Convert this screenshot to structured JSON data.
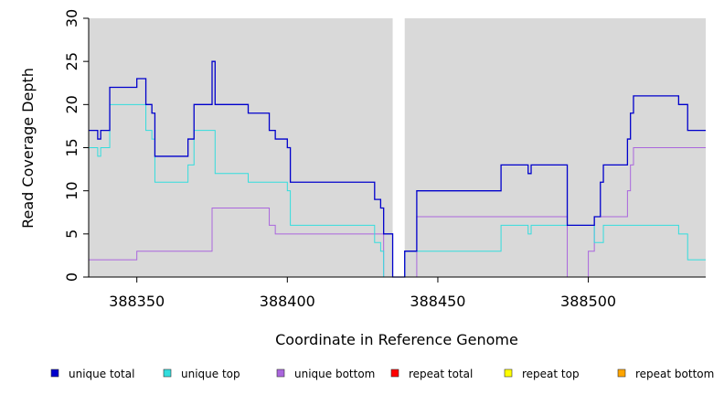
{
  "chart_data": {
    "type": "line",
    "title": "",
    "xlabel": "Coordinate in Reference Genome",
    "ylabel": "Read Coverage Depth",
    "xlim": [
      388334,
      388539
    ],
    "ylim": [
      0,
      30
    ],
    "x_ticks": [
      388350,
      388400,
      388450,
      388500
    ],
    "y_ticks": [
      0,
      5,
      10,
      15,
      20,
      25,
      30
    ],
    "shaded_regions": [
      {
        "x0": 388334,
        "x1": 388435
      },
      {
        "x0": 388439,
        "x1": 388539
      }
    ],
    "legend_position": "bottom",
    "series": [
      {
        "name": "unique total",
        "color": "#0000cc",
        "points": [
          [
            388334,
            17
          ],
          [
            388337,
            17
          ],
          [
            388337,
            16
          ],
          [
            388338,
            16
          ],
          [
            388338,
            17
          ],
          [
            388341,
            17
          ],
          [
            388341,
            22
          ],
          [
            388350,
            22
          ],
          [
            388350,
            23
          ],
          [
            388353,
            23
          ],
          [
            388353,
            20
          ],
          [
            388355,
            20
          ],
          [
            388355,
            19
          ],
          [
            388356,
            19
          ],
          [
            388356,
            14
          ],
          [
            388367,
            14
          ],
          [
            388367,
            16
          ],
          [
            388369,
            16
          ],
          [
            388369,
            20
          ],
          [
            388375,
            20
          ],
          [
            388375,
            25
          ],
          [
            388376,
            25
          ],
          [
            388376,
            20
          ],
          [
            388387,
            20
          ],
          [
            388387,
            19
          ],
          [
            388394,
            19
          ],
          [
            388394,
            17
          ],
          [
            388396,
            17
          ],
          [
            388396,
            16
          ],
          [
            388400,
            16
          ],
          [
            388400,
            15
          ],
          [
            388401,
            15
          ],
          [
            388401,
            11
          ],
          [
            388429,
            11
          ],
          [
            388429,
            9
          ],
          [
            388431,
            9
          ],
          [
            388431,
            8
          ],
          [
            388432,
            8
          ],
          [
            388432,
            5
          ],
          [
            388435,
            5
          ],
          [
            388435,
            0
          ],
          [
            388439,
            0
          ],
          [
            388439,
            3
          ],
          [
            388443,
            3
          ],
          [
            388443,
            10
          ],
          [
            388471,
            10
          ],
          [
            388471,
            13
          ],
          [
            388480,
            13
          ],
          [
            388480,
            12
          ],
          [
            388481,
            12
          ],
          [
            388481,
            13
          ],
          [
            388493,
            13
          ],
          [
            388493,
            6
          ],
          [
            388502,
            6
          ],
          [
            388502,
            7
          ],
          [
            388504,
            7
          ],
          [
            388504,
            11
          ],
          [
            388505,
            11
          ],
          [
            388505,
            13
          ],
          [
            388513,
            13
          ],
          [
            388513,
            16
          ],
          [
            388514,
            16
          ],
          [
            388514,
            19
          ],
          [
            388515,
            19
          ],
          [
            388515,
            21
          ],
          [
            388530,
            21
          ],
          [
            388530,
            20
          ],
          [
            388533,
            20
          ],
          [
            388533,
            17
          ],
          [
            388539,
            17
          ]
        ]
      },
      {
        "name": "unique top",
        "color": "#33dddd",
        "points": [
          [
            388334,
            15
          ],
          [
            388337,
            15
          ],
          [
            388337,
            14
          ],
          [
            388338,
            14
          ],
          [
            388338,
            15
          ],
          [
            388341,
            15
          ],
          [
            388341,
            20
          ],
          [
            388353,
            20
          ],
          [
            388353,
            17
          ],
          [
            388355,
            17
          ],
          [
            388355,
            16
          ],
          [
            388356,
            16
          ],
          [
            388356,
            11
          ],
          [
            388367,
            11
          ],
          [
            388367,
            13
          ],
          [
            388369,
            13
          ],
          [
            388369,
            17
          ],
          [
            388376,
            17
          ],
          [
            388376,
            12
          ],
          [
            388387,
            12
          ],
          [
            388387,
            11
          ],
          [
            388400,
            11
          ],
          [
            388400,
            10
          ],
          [
            388401,
            10
          ],
          [
            388401,
            6
          ],
          [
            388429,
            6
          ],
          [
            388429,
            4
          ],
          [
            388431,
            4
          ],
          [
            388431,
            3
          ],
          [
            388432,
            3
          ],
          [
            388432,
            0
          ],
          [
            388439,
            0
          ],
          [
            388439,
            3
          ],
          [
            388471,
            3
          ],
          [
            388471,
            6
          ],
          [
            388480,
            6
          ],
          [
            388480,
            5
          ],
          [
            388481,
            5
          ],
          [
            388481,
            6
          ],
          [
            388493,
            6
          ],
          [
            388493,
            6
          ],
          [
            388502,
            6
          ],
          [
            388502,
            4
          ],
          [
            388505,
            4
          ],
          [
            388505,
            6
          ],
          [
            388530,
            6
          ],
          [
            388530,
            5
          ],
          [
            388533,
            5
          ],
          [
            388533,
            2
          ],
          [
            388539,
            2
          ]
        ]
      },
      {
        "name": "unique bottom",
        "color": "#aa66dd",
        "points": [
          [
            388334,
            2
          ],
          [
            388350,
            2
          ],
          [
            388350,
            3
          ],
          [
            388375,
            3
          ],
          [
            388375,
            8
          ],
          [
            388394,
            8
          ],
          [
            388394,
            6
          ],
          [
            388396,
            6
          ],
          [
            388396,
            5
          ],
          [
            388432,
            5
          ],
          [
            388432,
            0
          ],
          [
            388443,
            0
          ],
          [
            388443,
            7
          ],
          [
            388493,
            7
          ],
          [
            388493,
            0
          ],
          [
            388500,
            0
          ],
          [
            388500,
            3
          ],
          [
            388502,
            3
          ],
          [
            388502,
            7
          ],
          [
            388513,
            7
          ],
          [
            388513,
            10
          ],
          [
            388514,
            10
          ],
          [
            388514,
            13
          ],
          [
            388515,
            13
          ],
          [
            388515,
            15
          ],
          [
            388539,
            15
          ]
        ]
      },
      {
        "name": "repeat total",
        "color": "#ff0000",
        "points": [
          [
            388334,
            0
          ],
          [
            388539,
            0
          ]
        ]
      },
      {
        "name": "repeat top",
        "color": "#ffff00",
        "points": [
          [
            388334,
            0
          ],
          [
            388539,
            0
          ]
        ]
      },
      {
        "name": "repeat bottom",
        "color": "#ffa500",
        "points": [
          [
            388334,
            0
          ],
          [
            388539,
            0
          ]
        ]
      }
    ]
  }
}
